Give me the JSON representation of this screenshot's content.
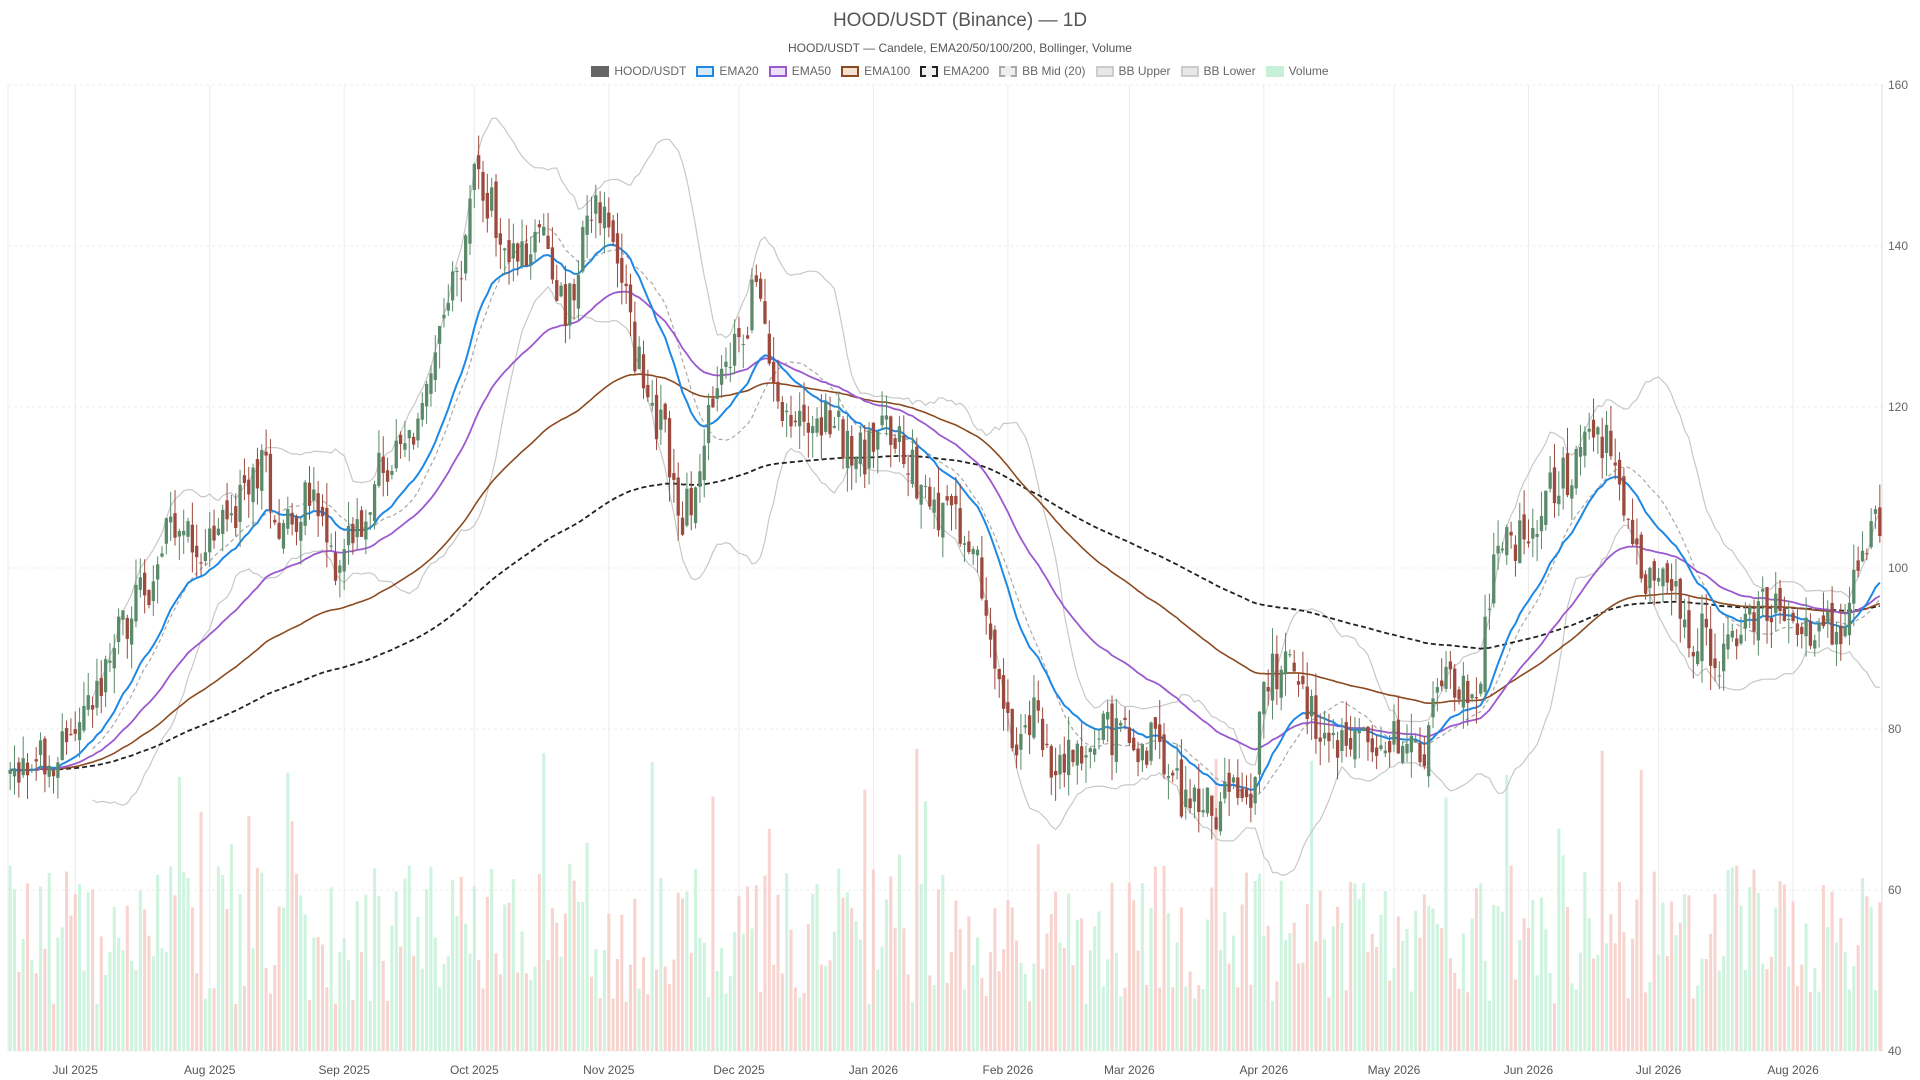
{
  "chart_data": {
    "type": "candlestick",
    "title": "HOOD/USDT (Binance) — 1D",
    "subtitle": "HOOD/USDT — Candele, EMA20/50/100/200, Bollinger, Volume",
    "legend": [
      {
        "name": "HOOD/USDT",
        "fill": "#666666",
        "border": "#666666",
        "dash": false
      },
      {
        "name": "EMA20",
        "fill": "#d6e9f8",
        "border": "#1e88e5",
        "dash": false
      },
      {
        "name": "EMA50",
        "fill": "#ebe0f7",
        "border": "#9b59d0",
        "dash": false
      },
      {
        "name": "EMA100",
        "fill": "#f2e0d3",
        "border": "#8b4a1f",
        "dash": false
      },
      {
        "name": "EMA200",
        "fill": "#f0f0f0",
        "border": "#222222",
        "dash": true
      },
      {
        "name": "BB Mid (20)",
        "fill": "#eeeeee",
        "border": "#aaaaaa",
        "dash": true
      },
      {
        "name": "BB Upper",
        "fill": "#e8e8e8",
        "border": "#cccccc",
        "dash": false
      },
      {
        "name": "BB Lower",
        "fill": "#e8e8e8",
        "border": "#cccccc",
        "dash": false
      },
      {
        "name": "Volume",
        "fill": "#c6f1d8",
        "border": "#c6f1d8",
        "dash": false
      }
    ],
    "colors": {
      "up": "#5a8a6a",
      "down": "#9c4a3e",
      "vol_up": "#c6f1d8",
      "vol_down": "#f7cdc7",
      "ema20": "#1e88e5",
      "ema50": "#9b59d0",
      "ema100": "#8b4a1f",
      "ema200": "#222222",
      "bb_mid": "#a8a8a8",
      "bb_band": "#c8c8c8",
      "grid": "#ececec"
    },
    "x_labels": [
      "Jul 2025",
      "Aug 2025",
      "Sep 2025",
      "Oct 2025",
      "Nov 2025",
      "Dec 2025",
      "Jan 2026",
      "Feb 2026",
      "Mar 2026",
      "Apr 2026",
      "May 2026",
      "Jun 2026",
      "Jul 2026",
      "Aug 2026"
    ],
    "label_day_index": [
      15,
      46,
      77,
      107,
      138,
      168,
      199,
      230,
      258,
      289,
      319,
      350,
      380,
      411
    ],
    "y_ticks": [
      40,
      60,
      80,
      100,
      120,
      140,
      160
    ],
    "ylim": [
      40,
      160
    ],
    "day_count": 432,
    "price_anchors": [
      [
        0,
        74
      ],
      [
        10,
        77
      ],
      [
        20,
        83
      ],
      [
        25,
        92
      ],
      [
        30,
        96
      ],
      [
        37,
        104
      ],
      [
        45,
        103
      ],
      [
        52,
        107
      ],
      [
        58,
        113
      ],
      [
        62,
        106
      ],
      [
        69,
        108
      ],
      [
        75,
        101
      ],
      [
        80,
        106
      ],
      [
        85,
        112
      ],
      [
        92,
        115
      ],
      [
        95,
        121
      ],
      [
        104,
        136
      ],
      [
        107,
        150
      ],
      [
        110,
        145
      ],
      [
        116,
        138
      ],
      [
        123,
        142
      ],
      [
        128,
        132
      ],
      [
        134,
        146
      ],
      [
        140,
        139
      ],
      [
        145,
        125
      ],
      [
        150,
        118
      ],
      [
        155,
        106
      ],
      [
        158,
        110
      ],
      [
        163,
        122
      ],
      [
        168,
        128
      ],
      [
        172,
        135
      ],
      [
        175,
        126
      ],
      [
        180,
        118
      ],
      [
        187,
        119
      ],
      [
        193,
        116
      ],
      [
        197,
        114
      ],
      [
        201,
        118
      ],
      [
        205,
        116
      ],
      [
        211,
        110
      ],
      [
        216,
        106
      ],
      [
        221,
        103
      ],
      [
        225,
        96
      ],
      [
        228,
        87
      ],
      [
        232,
        76
      ],
      [
        236,
        82
      ],
      [
        240,
        75
      ],
      [
        246,
        77
      ],
      [
        252,
        80
      ],
      [
        258,
        79
      ],
      [
        263,
        78
      ],
      [
        270,
        72
      ],
      [
        276,
        70
      ],
      [
        282,
        72
      ],
      [
        286,
        73
      ],
      [
        290,
        87
      ],
      [
        295,
        89
      ],
      [
        299,
        83
      ],
      [
        304,
        78
      ],
      [
        310,
        78
      ],
      [
        316,
        79
      ],
      [
        322,
        77
      ],
      [
        326,
        76
      ],
      [
        330,
        87
      ],
      [
        335,
        86
      ],
      [
        338,
        84
      ],
      [
        342,
        100
      ],
      [
        346,
        104
      ],
      [
        351,
        102
      ],
      [
        355,
        109
      ],
      [
        360,
        112
      ],
      [
        365,
        115
      ],
      [
        368,
        116
      ],
      [
        373,
        106
      ],
      [
        378,
        99
      ],
      [
        383,
        96
      ],
      [
        388,
        92
      ],
      [
        395,
        89
      ],
      [
        400,
        92
      ],
      [
        405,
        95
      ],
      [
        412,
        94
      ],
      [
        418,
        92
      ],
      [
        422,
        93
      ],
      [
        426,
        100
      ],
      [
        431,
        105
      ]
    ],
    "volume_range": [
      0,
      1
    ]
  }
}
